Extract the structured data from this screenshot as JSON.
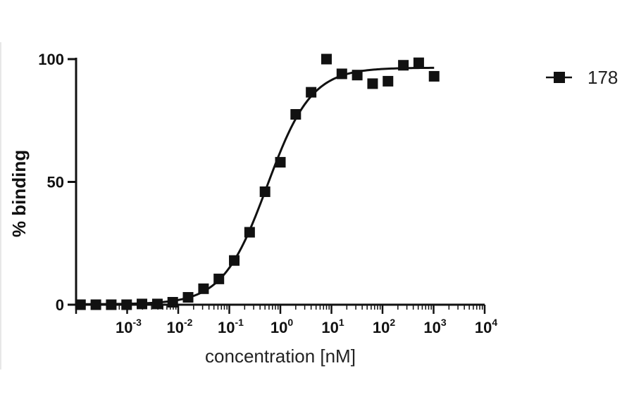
{
  "chart_data": {
    "type": "scatter",
    "xlabel": "concentration [nM]",
    "ylabel": "% binding",
    "x_scale": "log",
    "xlim": [
      0.0001,
      10000
    ],
    "ylim": [
      0,
      100
    ],
    "y_ticks": [
      0,
      50,
      100
    ],
    "x_ticks": [
      {
        "value": 0.001,
        "base": "10",
        "exp": "-3"
      },
      {
        "value": 0.01,
        "base": "10",
        "exp": "-2"
      },
      {
        "value": 0.1,
        "base": "10",
        "exp": "-1"
      },
      {
        "value": 1,
        "base": "10",
        "exp": "0"
      },
      {
        "value": 10,
        "base": "10",
        "exp": "1"
      },
      {
        "value": 100,
        "base": "10",
        "exp": "2"
      },
      {
        "value": 1000,
        "base": "10",
        "exp": "3"
      },
      {
        "value": 10000,
        "base": "10",
        "exp": "4"
      }
    ],
    "legend": {
      "position": "top-right"
    },
    "grid": false,
    "series": [
      {
        "name": "178",
        "marker": "square",
        "color": "#111111",
        "points": [
          {
            "x": 0.000122,
            "y": 0.0
          },
          {
            "x": 0.000244,
            "y": 0.0
          },
          {
            "x": 0.000488,
            "y": 0.0
          },
          {
            "x": 0.000977,
            "y": 0.0
          },
          {
            "x": 0.00195,
            "y": 0.3
          },
          {
            "x": 0.00391,
            "y": 0.3
          },
          {
            "x": 0.00781,
            "y": 1.0
          },
          {
            "x": 0.0156,
            "y": 3.0
          },
          {
            "x": 0.0313,
            "y": 6.5
          },
          {
            "x": 0.0625,
            "y": 10.5
          },
          {
            "x": 0.125,
            "y": 18.0
          },
          {
            "x": 0.25,
            "y": 29.5
          },
          {
            "x": 0.5,
            "y": 46.0
          },
          {
            "x": 1.0,
            "y": 58.0
          },
          {
            "x": 2.0,
            "y": 77.5
          },
          {
            "x": 4.0,
            "y": 86.5
          },
          {
            "x": 8.0,
            "y": 100.0
          },
          {
            "x": 16.0,
            "y": 94.0
          },
          {
            "x": 32.0,
            "y": 93.5
          },
          {
            "x": 64.0,
            "y": 90.0
          },
          {
            "x": 128.0,
            "y": 91.0
          },
          {
            "x": 256.0,
            "y": 97.5
          },
          {
            "x": 512.0,
            "y": 98.5
          },
          {
            "x": 1024.0,
            "y": 93.0
          }
        ],
        "fit": {
          "type": "sigmoid",
          "bottom": 0.2,
          "top": 96.5,
          "ec50": 0.55,
          "hill": 1.0
        }
      }
    ]
  }
}
